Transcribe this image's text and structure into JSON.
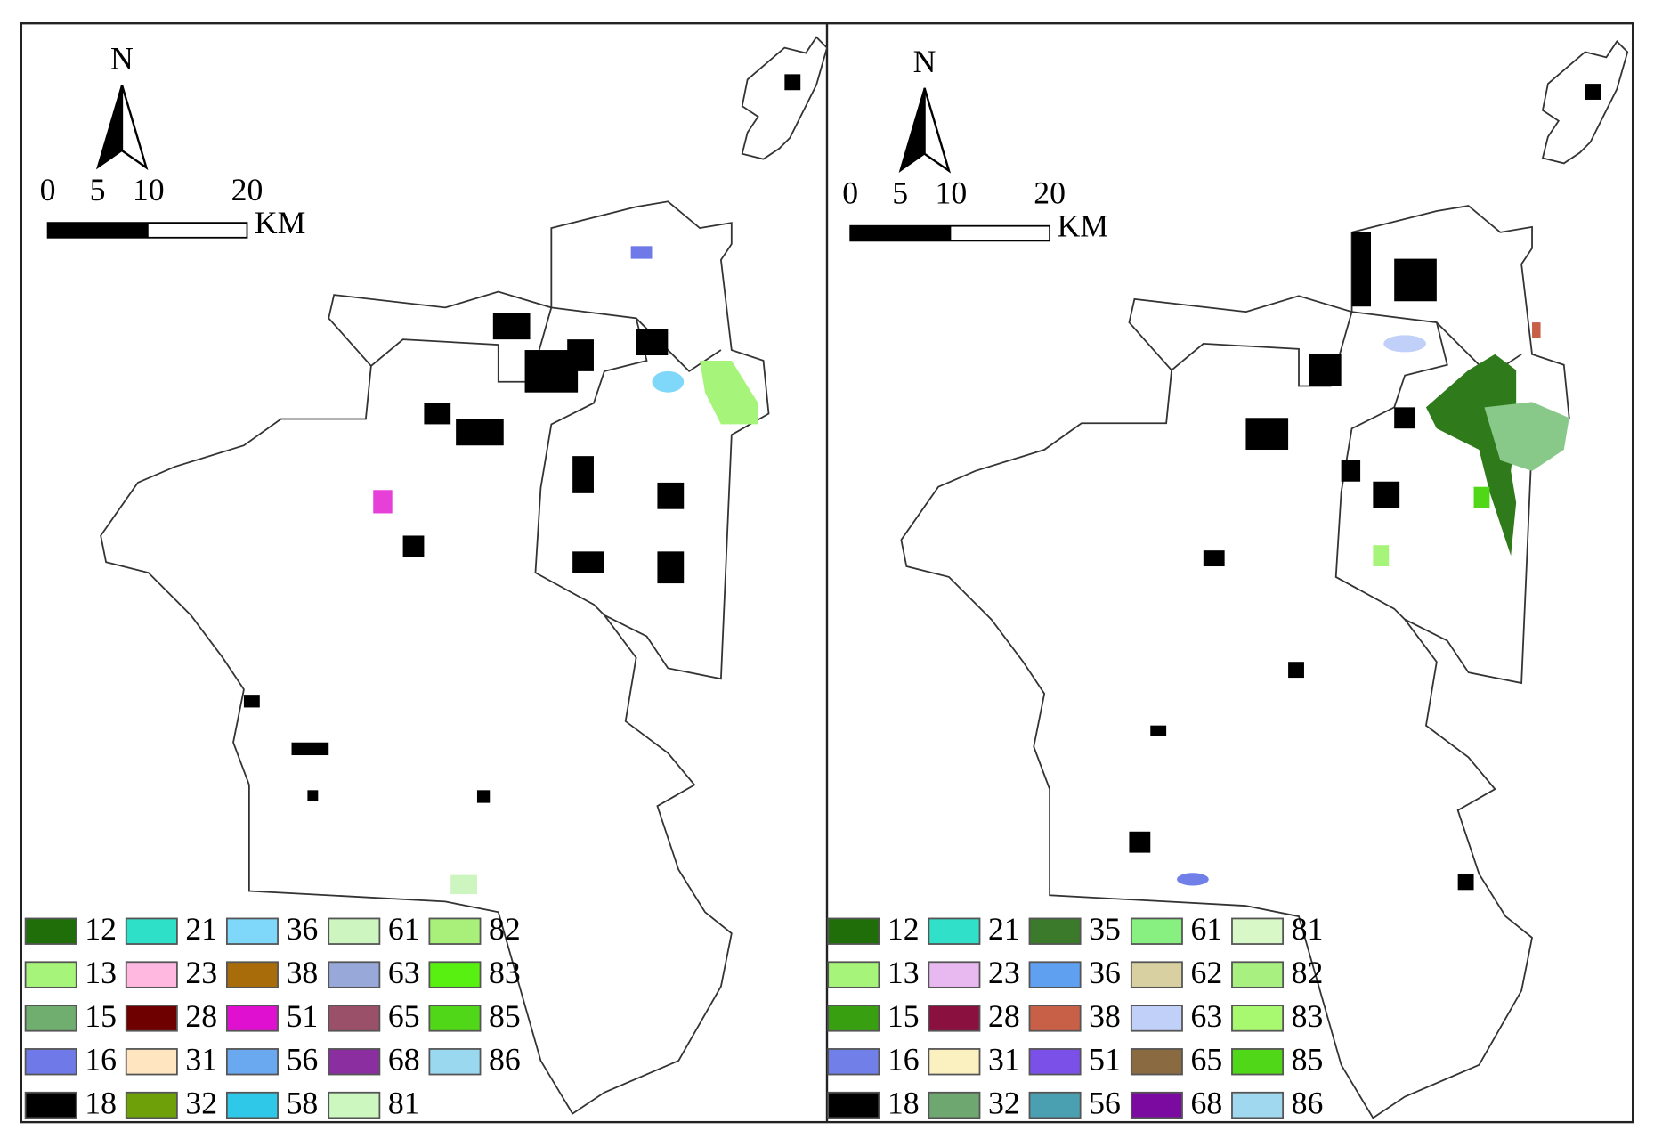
{
  "panels": [
    {
      "north": "N",
      "scale_labels": [
        "0",
        "5",
        "10",
        "20"
      ],
      "scale_unit": "KM",
      "legend": [
        {
          "code": "12",
          "color": "#1f6e0a"
        },
        {
          "code": "13",
          "color": "#a6f57a"
        },
        {
          "code": "15",
          "color": "#6fae6f"
        },
        {
          "code": "16",
          "color": "#6f79e8"
        },
        {
          "code": "18",
          "color": "#000000"
        },
        {
          "code": "21",
          "color": "#2fe0c8"
        },
        {
          "code": "23",
          "color": "#ffb8e0"
        },
        {
          "code": "28",
          "color": "#6e0000"
        },
        {
          "code": "31",
          "color": "#ffe5c0"
        },
        {
          "code": "32",
          "color": "#6ea00a"
        },
        {
          "code": "36",
          "color": "#7fd8fa"
        },
        {
          "code": "38",
          "color": "#a86c0a"
        },
        {
          "code": "51",
          "color": "#e010d0"
        },
        {
          "code": "56",
          "color": "#6aa8f0"
        },
        {
          "code": "58",
          "color": "#30c8e8"
        },
        {
          "code": "61",
          "color": "#ccf5c0"
        },
        {
          "code": "63",
          "color": "#98a8d8"
        },
        {
          "code": "65",
          "color": "#9a5068"
        },
        {
          "code": "68",
          "color": "#8a2ea0"
        },
        {
          "code": "81",
          "color": "#ccf8c0"
        },
        {
          "code": "82",
          "color": "#a8f07a"
        },
        {
          "code": "83",
          "color": "#58f010"
        },
        {
          "code": "85",
          "color": "#50d818"
        },
        {
          "code": "86",
          "color": "#9ad8f0"
        }
      ]
    },
    {
      "north": "N",
      "scale_labels": [
        "0",
        "5",
        "10",
        "20"
      ],
      "scale_unit": "KM",
      "legend": [
        {
          "code": "12",
          "color": "#1f6e0a"
        },
        {
          "code": "13",
          "color": "#a6f57a"
        },
        {
          "code": "15",
          "color": "#38a010"
        },
        {
          "code": "16",
          "color": "#7080e8"
        },
        {
          "code": "18",
          "color": "#000000"
        },
        {
          "code": "21",
          "color": "#30e0c8"
        },
        {
          "code": "23",
          "color": "#e8b8f0"
        },
        {
          "code": "28",
          "color": "#8a1040"
        },
        {
          "code": "31",
          "color": "#fbf0c0"
        },
        {
          "code": "32",
          "color": "#6ea870"
        },
        {
          "code": "35",
          "color": "#3a7a2a"
        },
        {
          "code": "36",
          "color": "#5fa0f0"
        },
        {
          "code": "38",
          "color": "#c86048"
        },
        {
          "code": "51",
          "color": "#7a50e8"
        },
        {
          "code": "56",
          "color": "#4aa0b0"
        },
        {
          "code": "61",
          "color": "#88f080"
        },
        {
          "code": "62",
          "color": "#d8d0a0"
        },
        {
          "code": "63",
          "color": "#c0d0f8"
        },
        {
          "code": "65",
          "color": "#8a6a40"
        },
        {
          "code": "68",
          "color": "#7a0aa0"
        },
        {
          "code": "81",
          "color": "#d8f8c8"
        },
        {
          "code": "82",
          "color": "#a8f080"
        },
        {
          "code": "83",
          "color": "#a8f870"
        },
        {
          "code": "85",
          "color": "#50d818"
        },
        {
          "code": "86",
          "color": "#a0d8f0"
        }
      ]
    }
  ]
}
